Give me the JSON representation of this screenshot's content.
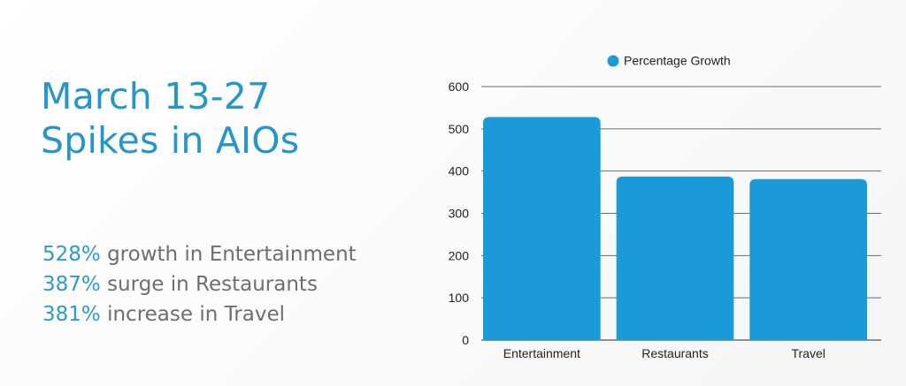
{
  "headline": {
    "line1": "March 13-27",
    "line2": "Spikes in AIOs"
  },
  "stats": [
    {
      "value": "528%",
      "text": " growth in Entertainment"
    },
    {
      "value": "387%",
      "text": " surge in Restaurants"
    },
    {
      "value": "381%",
      "text": " increase in Travel"
    }
  ],
  "colors": {
    "accent": "#2596c8",
    "bar": "#1a9ad8",
    "body_text": "#6e6e6e"
  },
  "chart_data": {
    "type": "bar",
    "categories": [
      "Entertainment",
      "Restaurants",
      "Travel"
    ],
    "series": [
      {
        "name": "Percentage Growth",
        "values": [
          528,
          387,
          381
        ]
      }
    ],
    "yticks": [
      "0",
      "100",
      "200",
      "300",
      "400",
      "500",
      "600"
    ],
    "ylim": [
      0,
      600
    ],
    "grid": true,
    "legend_position": "top-center"
  }
}
